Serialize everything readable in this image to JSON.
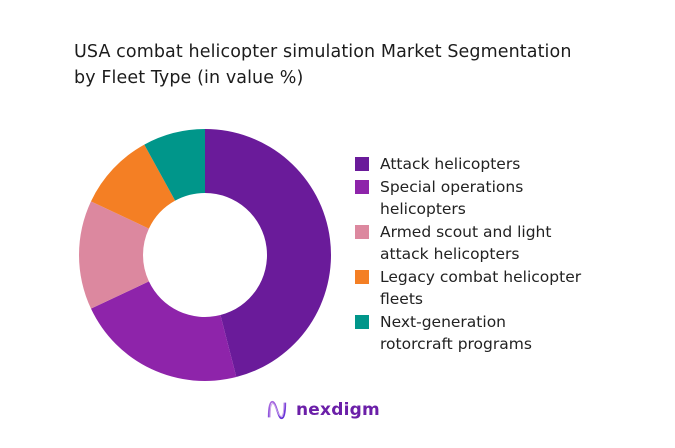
{
  "title": {
    "line1": "USA combat helicopter simulation Market Segmentation",
    "line2": "by Fleet Type (in value %)"
  },
  "chart_data": {
    "type": "pie",
    "variant": "donut",
    "title": "USA combat helicopter simulation Market Segmentation by Fleet Type (in value %)",
    "categories": [
      "Attack helicopters",
      "Special operations helicopters",
      "Armed scout and light attack helicopters",
      "Legacy combat helicopter fleets",
      "Next-generation rotorcraft programs"
    ],
    "values": [
      46,
      22,
      14,
      10,
      8
    ],
    "colors": [
      "#6a1b9a",
      "#8e24aa",
      "#dc889f",
      "#f47f24",
      "#00968a"
    ],
    "start_angle_deg": 0,
    "direction": "clockwise",
    "legend_position": "right",
    "data_labels": false
  },
  "legend": {
    "items": [
      {
        "lines": [
          "Attack helicopters"
        ],
        "color": "#6a1b9a"
      },
      {
        "lines": [
          "Special operations",
          "helicopters"
        ],
        "color": "#8e24aa"
      },
      {
        "lines": [
          "Armed scout and light",
          "attack helicopters"
        ],
        "color": "#dc889f"
      },
      {
        "lines": [
          "Legacy combat helicopter",
          "fleets"
        ],
        "color": "#f47f24"
      },
      {
        "lines": [
          "Next-generation",
          "rotorcraft programs"
        ],
        "color": "#00968a"
      }
    ]
  },
  "logo": {
    "icon": "nexdigm-wave-icon",
    "text": "nexdigm"
  }
}
